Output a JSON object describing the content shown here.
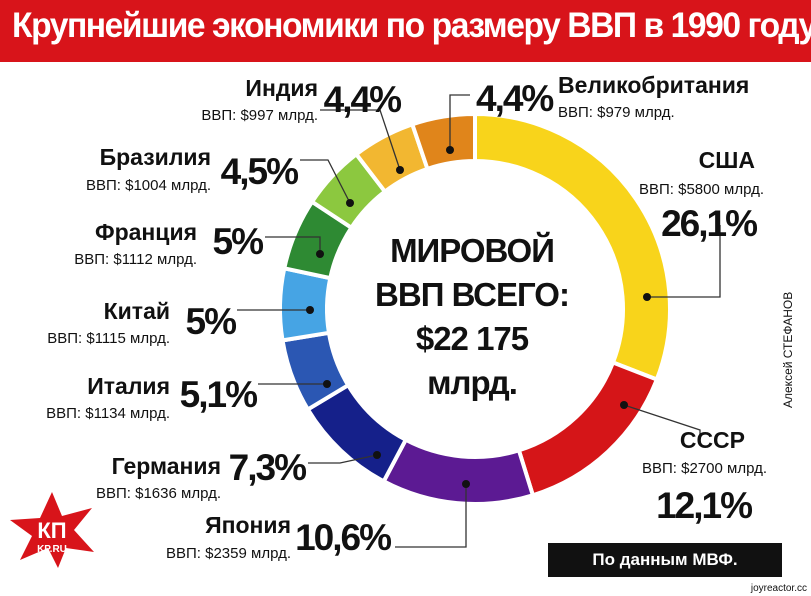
{
  "title": "Крупнейшие экономики по размеру ВВП в 1990 году",
  "center_text": [
    "МИРОВОЙ",
    "ВВП ВСЕГО:",
    "$22 175",
    "млрд."
  ],
  "source": "По данным МВФ.",
  "author": "Алексей СТЕФАНОВ",
  "logo": {
    "top": "КП",
    "bottom": "KP.RU"
  },
  "watermark": "joyreactor.cc",
  "colors": {
    "title_bg": "#d8141a",
    "source_bg": "#111111"
  },
  "chart_data": {
    "type": "pie",
    "title": "Крупнейшие экономики по размеру ВВП в 1990 году",
    "total": "$22 175 млрд.",
    "slices": [
      {
        "name": "США",
        "gdp": "ВВП: $5800 млрд.",
        "value": 26.1,
        "label": "26,1%",
        "color": "#f8d41b"
      },
      {
        "name": "СССР",
        "gdp": "ВВП: $2700 млрд.",
        "value": 12.1,
        "label": "12,1%",
        "color": "#d51518"
      },
      {
        "name": "Япония",
        "gdp": "ВВП: $2359 млрд.",
        "value": 10.6,
        "label": "10,6%",
        "color": "#5c1a93"
      },
      {
        "name": "Германия",
        "gdp": "ВВП: $1636 млрд.",
        "value": 7.3,
        "label": "7,3%",
        "color": "#15208a"
      },
      {
        "name": "Италия",
        "gdp": "ВВП: $1134 млрд.",
        "value": 5.1,
        "label": "5,1%",
        "color": "#2b57b3"
      },
      {
        "name": "Китай",
        "gdp": "ВВП: $1115 млрд.",
        "value": 5.0,
        "label": "5%",
        "color": "#46a4e4"
      },
      {
        "name": "Франция",
        "gdp": "ВВП: $1112 млрд.",
        "value": 5.0,
        "label": "5%",
        "color": "#2e8a33"
      },
      {
        "name": "Бразилия",
        "gdp": "ВВП: $1004 млрд.",
        "value": 4.5,
        "label": "4,5%",
        "color": "#8cc83f"
      },
      {
        "name": "Индия",
        "gdp": "ВВП: $997 млрд.",
        "value": 4.4,
        "label": "4,4%",
        "color": "#f2b731"
      },
      {
        "name": "Великобритания",
        "gdp": "ВВП: $979 млрд.",
        "value": 4.4,
        "label": "4,4%",
        "color": "#e0851b"
      }
    ]
  }
}
